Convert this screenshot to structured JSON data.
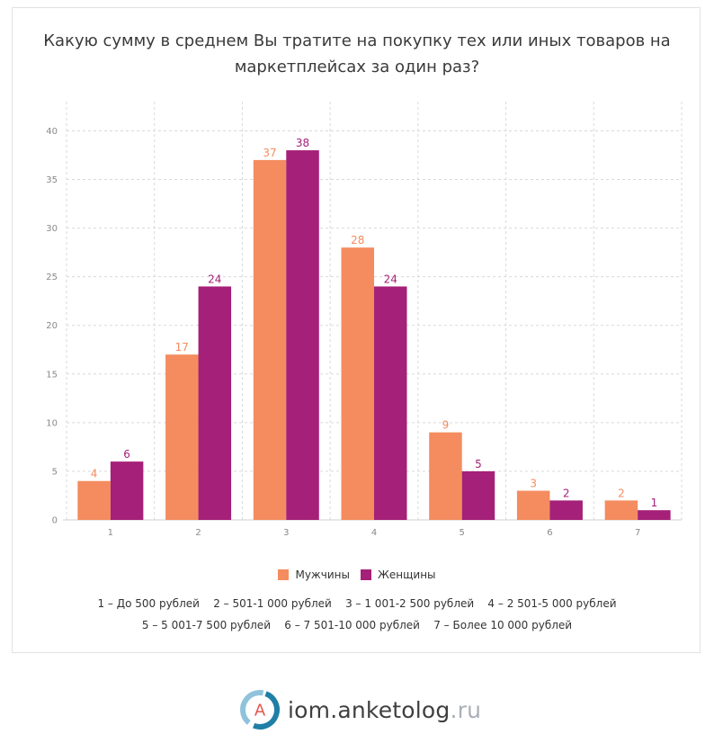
{
  "title": "Какую сумму в среднем Вы тратите на покупку тех или иных товаров на маркетплейсах за один раз?",
  "colors": {
    "men": "#f48c5f",
    "women": "#a52078",
    "grid": "#d9d9d9",
    "axis_text": "#888888"
  },
  "chart_data": {
    "type": "bar",
    "title": "Какую сумму в среднем Вы тратите на покупку тех или иных товаров на маркетплейсах за один раз?",
    "categories": [
      "1",
      "2",
      "3",
      "4",
      "5",
      "6",
      "7"
    ],
    "series": [
      {
        "name": "Мужчины",
        "values": [
          4,
          17,
          37,
          28,
          9,
          3,
          2
        ]
      },
      {
        "name": "Женщины",
        "values": [
          6,
          24,
          38,
          24,
          5,
          2,
          1
        ]
      }
    ],
    "yticks": [
      0,
      5,
      10,
      15,
      20,
      25,
      30,
      35,
      40
    ],
    "ylim": [
      0,
      43
    ],
    "grid": true,
    "legend_position": "bottom",
    "data_labels": true
  },
  "legend": {
    "men": "Мужчины",
    "women": "Женщины"
  },
  "notes": {
    "line1": "1 – До 500 рублей    2 – 501-1 000 рублей    3 – 1 001-2 500 рублей    4 – 2 501-5 000 рублей",
    "line2": "5 – 5 001-7 500 рублей    6 – 7 501-10 000 рублей    7 – Более 10 000 рублей"
  },
  "brand": {
    "name": "iom.anketolog",
    "tld": ".ru",
    "logo_letter": "A"
  }
}
